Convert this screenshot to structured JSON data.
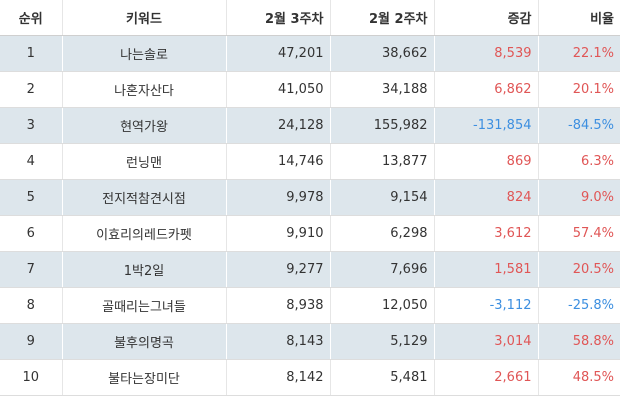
{
  "colors": {
    "positive": "#e05656",
    "negative": "#3d8fe0",
    "stripe": "#dde6ec"
  },
  "headers": {
    "rank": "순위",
    "keyword": "키워드",
    "week3": "2월 3주차",
    "week2": "2월 2주차",
    "change": "증감",
    "rate": "비율"
  },
  "rows": [
    {
      "rank": "1",
      "keyword": "나는솔로",
      "week3": "47,201",
      "week2": "38,662",
      "change": "8,539",
      "rate": "22.1%",
      "trend": "up"
    },
    {
      "rank": "2",
      "keyword": "나혼자산다",
      "week3": "41,050",
      "week2": "34,188",
      "change": "6,862",
      "rate": "20.1%",
      "trend": "up"
    },
    {
      "rank": "3",
      "keyword": "현역가왕",
      "week3": "24,128",
      "week2": "155,982",
      "change": "-131,854",
      "rate": "-84.5%",
      "trend": "down"
    },
    {
      "rank": "4",
      "keyword": "런닝맨",
      "week3": "14,746",
      "week2": "13,877",
      "change": "869",
      "rate": "6.3%",
      "trend": "up"
    },
    {
      "rank": "5",
      "keyword": "전지적참견시점",
      "week3": "9,978",
      "week2": "9,154",
      "change": "824",
      "rate": "9.0%",
      "trend": "up"
    },
    {
      "rank": "6",
      "keyword": "이효리의레드카펫",
      "week3": "9,910",
      "week2": "6,298",
      "change": "3,612",
      "rate": "57.4%",
      "trend": "up"
    },
    {
      "rank": "7",
      "keyword": "1박2일",
      "week3": "9,277",
      "week2": "7,696",
      "change": "1,581",
      "rate": "20.5%",
      "trend": "up"
    },
    {
      "rank": "8",
      "keyword": "골때리는그녀들",
      "week3": "8,938",
      "week2": "12,050",
      "change": "-3,112",
      "rate": "-25.8%",
      "trend": "down"
    },
    {
      "rank": "9",
      "keyword": "불후의명곡",
      "week3": "8,143",
      "week2": "5,129",
      "change": "3,014",
      "rate": "58.8%",
      "trend": "up"
    },
    {
      "rank": "10",
      "keyword": "불타는장미단",
      "week3": "8,142",
      "week2": "5,481",
      "change": "2,661",
      "rate": "48.5%",
      "trend": "up"
    }
  ]
}
